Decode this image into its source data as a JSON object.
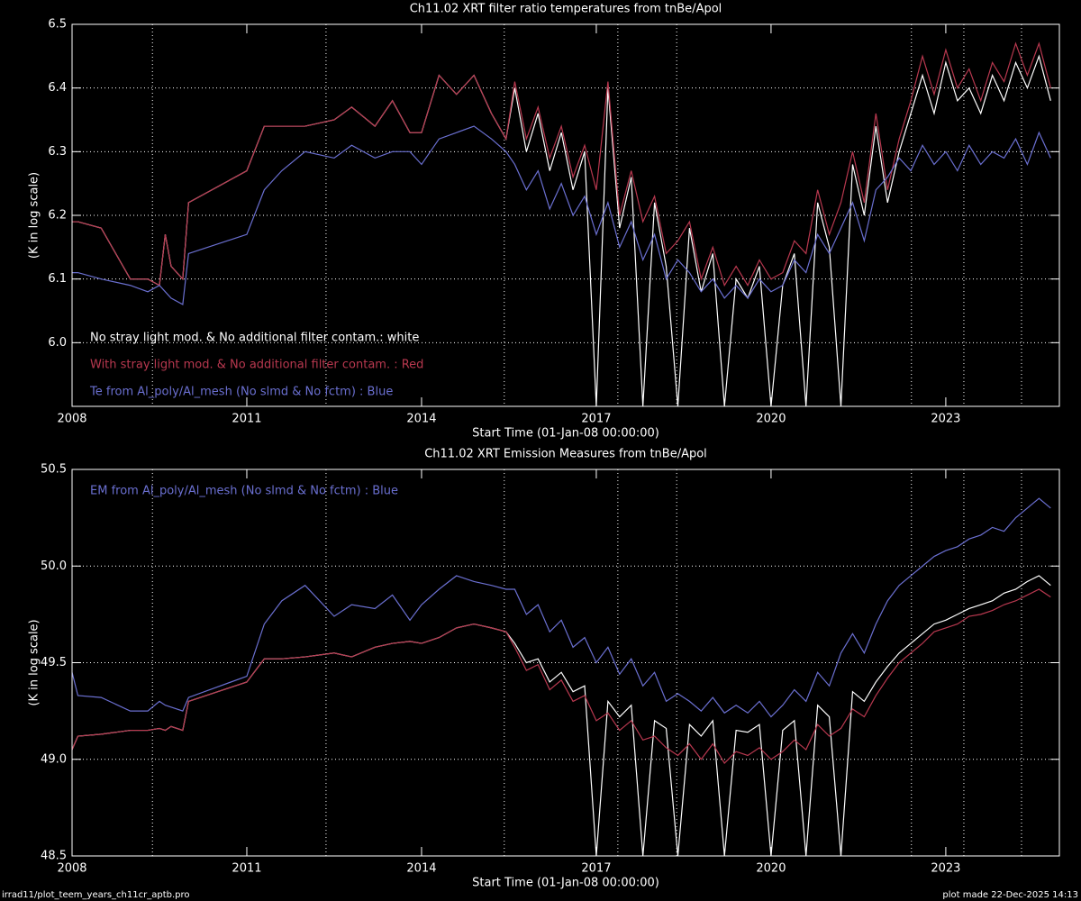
{
  "chart_data": [
    {
      "type": "line",
      "title": "Ch11.02 XRT filter ratio temperatures from tnBe/Apol",
      "x_label": "Start Time (01-Jan-08 00:00:00)",
      "y_label": "(K in log scale)",
      "xlim": [
        2008,
        2024.95
      ],
      "xticks": [
        2008,
        2011,
        2014,
        2017,
        2020,
        2023
      ],
      "ylim": [
        5.9,
        6.5
      ],
      "yticks": [
        {
          "value": 6,
          "label": "6.0"
        },
        6.1,
        6.2,
        6.3,
        6.4,
        6.5
      ],
      "grid": true,
      "legend": "lower left",
      "vlines": [
        2009.38,
        2012.36,
        2015.42,
        2017.37,
        2018.38,
        2022.41,
        2023.31,
        2024.3
      ],
      "x": [
        2008.0,
        2008.1,
        2008.5,
        2009.0,
        2009.3,
        2009.5,
        2009.6,
        2009.7,
        2009.9,
        2010.0,
        2011.0,
        2011.3,
        2011.6,
        2012.0,
        2012.5,
        2012.8,
        2013.2,
        2013.5,
        2013.8,
        2014.0,
        2014.3,
        2014.6,
        2014.9,
        2015.2,
        2015.45,
        2015.6,
        2015.8,
        2016.0,
        2016.2,
        2016.4,
        2016.6,
        2016.8,
        2017.0,
        2017.2,
        2017.4,
        2017.6,
        2017.8,
        2018.0,
        2018.2,
        2018.4,
        2018.6,
        2018.8,
        2019.0,
        2019.2,
        2019.4,
        2019.6,
        2019.8,
        2020.0,
        2020.2,
        2020.4,
        2020.6,
        2020.8,
        2021.0,
        2021.2,
        2021.4,
        2021.6,
        2021.8,
        2022.0,
        2022.2,
        2022.4,
        2022.6,
        2022.8,
        2023.0,
        2023.2,
        2023.4,
        2023.6,
        2023.8,
        2024.0,
        2024.2,
        2024.4,
        2024.6,
        2024.8
      ],
      "series": [
        {
          "name": "No stray light mod. & No additional filter contam.: white",
          "color": "#ffffff",
          "values": [
            6.19,
            6.19,
            6.18,
            6.1,
            6.1,
            6.09,
            6.17,
            6.12,
            6.1,
            6.22,
            6.27,
            6.34,
            6.34,
            6.34,
            6.35,
            6.37,
            6.34,
            6.38,
            6.33,
            6.33,
            6.42,
            6.39,
            6.42,
            6.36,
            6.32,
            6.4,
            6.3,
            6.36,
            6.27,
            6.33,
            6.24,
            6.3,
            5.9,
            6.4,
            6.18,
            6.26,
            5.9,
            6.22,
            6.12,
            5.9,
            6.18,
            6.08,
            6.14,
            5.9,
            6.1,
            6.07,
            6.12,
            5.9,
            6.09,
            6.14,
            5.9,
            6.22,
            6.15,
            5.9,
            6.28,
            6.2,
            6.34,
            6.22,
            6.3,
            6.36,
            6.42,
            6.36,
            6.44,
            6.38,
            6.4,
            6.36,
            6.42,
            6.38,
            6.44,
            6.4,
            6.45,
            6.38
          ]
        },
        {
          "name": "With stray light mod. & No additional filter contam. : Red",
          "color": "#b8384f",
          "values": [
            6.19,
            6.19,
            6.18,
            6.1,
            6.1,
            6.09,
            6.17,
            6.12,
            6.1,
            6.22,
            6.27,
            6.34,
            6.34,
            6.34,
            6.35,
            6.37,
            6.34,
            6.38,
            6.33,
            6.33,
            6.42,
            6.39,
            6.42,
            6.36,
            6.32,
            6.41,
            6.32,
            6.37,
            6.29,
            6.34,
            6.26,
            6.31,
            6.24,
            6.41,
            6.2,
            6.27,
            6.19,
            6.23,
            6.14,
            6.16,
            6.19,
            6.1,
            6.15,
            6.09,
            6.12,
            6.09,
            6.13,
            6.1,
            6.11,
            6.16,
            6.14,
            6.24,
            6.17,
            6.22,
            6.3,
            6.22,
            6.36,
            6.24,
            6.32,
            6.38,
            6.45,
            6.39,
            6.46,
            6.4,
            6.43,
            6.38,
            6.44,
            6.41,
            6.47,
            6.42,
            6.47,
            6.4
          ]
        },
        {
          "name": "Te from Al_poly/Al_mesh (No slmd & No fctm) : Blue",
          "color": "#6a6fd0",
          "values": [
            6.11,
            6.11,
            6.1,
            6.09,
            6.08,
            6.09,
            6.08,
            6.07,
            6.06,
            6.14,
            6.17,
            6.24,
            6.27,
            6.3,
            6.29,
            6.31,
            6.29,
            6.3,
            6.3,
            6.28,
            6.32,
            6.33,
            6.34,
            6.32,
            6.3,
            6.28,
            6.24,
            6.27,
            6.21,
            6.25,
            6.2,
            6.23,
            6.17,
            6.22,
            6.15,
            6.19,
            6.13,
            6.17,
            6.1,
            6.13,
            6.11,
            6.08,
            6.1,
            6.07,
            6.09,
            6.07,
            6.1,
            6.08,
            6.09,
            6.13,
            6.11,
            6.17,
            6.14,
            6.18,
            6.22,
            6.16,
            6.24,
            6.26,
            6.29,
            6.27,
            6.31,
            6.28,
            6.3,
            6.27,
            6.31,
            6.28,
            6.3,
            6.29,
            6.32,
            6.28,
            6.33,
            6.29
          ]
        }
      ]
    },
    {
      "type": "line",
      "title": "Ch11.02 XRT Emission Measures from tnBe/Apol",
      "x_label": "Start Time (01-Jan-08 00:00:00)",
      "y_label": "(K in log scale)",
      "xlim": [
        2008,
        2024.95
      ],
      "xticks": [
        2008,
        2011,
        2014,
        2017,
        2020,
        2023
      ],
      "ylim": [
        48.5,
        50.5
      ],
      "yticks": [
        48.5,
        {
          "value": 49,
          "label": "49.0"
        },
        49.5,
        {
          "value": 50,
          "label": "50.0"
        },
        50.5
      ],
      "grid": true,
      "legend": "upper left",
      "vlines": [
        2009.38,
        2012.36,
        2015.42,
        2017.37,
        2018.38,
        2022.41,
        2023.31,
        2024.3
      ],
      "x": [
        2008.0,
        2008.1,
        2008.5,
        2009.0,
        2009.3,
        2009.5,
        2009.6,
        2009.7,
        2009.9,
        2010.0,
        2011.0,
        2011.3,
        2011.6,
        2012.0,
        2012.5,
        2012.8,
        2013.2,
        2013.5,
        2013.8,
        2014.0,
        2014.3,
        2014.6,
        2014.9,
        2015.2,
        2015.45,
        2015.6,
        2015.8,
        2016.0,
        2016.2,
        2016.4,
        2016.6,
        2016.8,
        2017.0,
        2017.2,
        2017.4,
        2017.6,
        2017.8,
        2018.0,
        2018.2,
        2018.4,
        2018.6,
        2018.8,
        2019.0,
        2019.2,
        2019.4,
        2019.6,
        2019.8,
        2020.0,
        2020.2,
        2020.4,
        2020.6,
        2020.8,
        2021.0,
        2021.2,
        2021.4,
        2021.6,
        2021.8,
        2022.0,
        2022.2,
        2022.4,
        2022.6,
        2022.8,
        2023.0,
        2023.2,
        2023.4,
        2023.6,
        2023.8,
        2024.0,
        2024.2,
        2024.4,
        2024.6,
        2024.8
      ],
      "series": [
        {
          "color": "#ffffff",
          "values": [
            49.05,
            49.12,
            49.13,
            49.15,
            49.15,
            49.16,
            49.15,
            49.17,
            49.15,
            49.3,
            49.4,
            49.52,
            49.52,
            49.53,
            49.55,
            49.53,
            49.58,
            49.6,
            49.61,
            49.6,
            49.63,
            49.68,
            49.7,
            49.68,
            49.66,
            49.6,
            49.5,
            49.52,
            49.4,
            49.45,
            49.35,
            49.38,
            48.5,
            49.3,
            49.22,
            49.28,
            48.5,
            49.2,
            49.16,
            48.5,
            49.18,
            49.12,
            49.2,
            48.5,
            49.15,
            49.14,
            49.18,
            48.5,
            49.15,
            49.2,
            48.5,
            49.28,
            49.22,
            48.5,
            49.35,
            49.3,
            49.4,
            49.48,
            49.55,
            49.6,
            49.65,
            49.7,
            49.72,
            49.75,
            49.78,
            49.8,
            49.82,
            49.86,
            49.88,
            49.92,
            49.95,
            49.9
          ]
        },
        {
          "color": "#b8384f",
          "values": [
            49.05,
            49.12,
            49.13,
            49.15,
            49.15,
            49.16,
            49.15,
            49.17,
            49.15,
            49.3,
            49.4,
            49.52,
            49.52,
            49.53,
            49.55,
            49.53,
            49.58,
            49.6,
            49.61,
            49.6,
            49.63,
            49.68,
            49.7,
            49.68,
            49.66,
            49.58,
            49.46,
            49.49,
            49.36,
            49.41,
            49.3,
            49.33,
            49.2,
            49.24,
            49.15,
            49.2,
            49.1,
            49.12,
            49.06,
            49.02,
            49.08,
            49.0,
            49.08,
            48.98,
            49.04,
            49.02,
            49.06,
            49.0,
            49.04,
            49.1,
            49.05,
            49.18,
            49.12,
            49.16,
            49.26,
            49.22,
            49.33,
            49.42,
            49.5,
            49.55,
            49.6,
            49.66,
            49.68,
            49.7,
            49.74,
            49.75,
            49.77,
            49.8,
            49.82,
            49.85,
            49.88,
            49.84
          ]
        },
        {
          "name": "EM from Al_poly/Al_mesh (No slmd & No fctm) : Blue",
          "color": "#6a6fd0",
          "values": [
            49.45,
            49.33,
            49.32,
            49.25,
            49.25,
            49.3,
            49.28,
            49.27,
            49.25,
            49.32,
            49.43,
            49.7,
            49.82,
            49.9,
            49.74,
            49.8,
            49.78,
            49.85,
            49.72,
            49.8,
            49.88,
            49.95,
            49.92,
            49.9,
            49.88,
            49.88,
            49.75,
            49.8,
            49.66,
            49.72,
            49.58,
            49.63,
            49.5,
            49.58,
            49.44,
            49.52,
            49.38,
            49.45,
            49.3,
            49.34,
            49.3,
            49.25,
            49.32,
            49.24,
            49.28,
            49.24,
            49.3,
            49.22,
            49.28,
            49.36,
            49.3,
            49.45,
            49.38,
            49.55,
            49.65,
            49.55,
            49.7,
            49.82,
            49.9,
            49.95,
            50.0,
            50.05,
            50.08,
            50.1,
            50.14,
            50.16,
            50.2,
            50.18,
            50.25,
            50.3,
            50.35,
            50.3
          ]
        }
      ]
    }
  ],
  "footer": {
    "left": "irrad11/plot_teem_years_ch11cr_aptb.pro",
    "right": "plot made 22-Dec-2025 14:13"
  }
}
